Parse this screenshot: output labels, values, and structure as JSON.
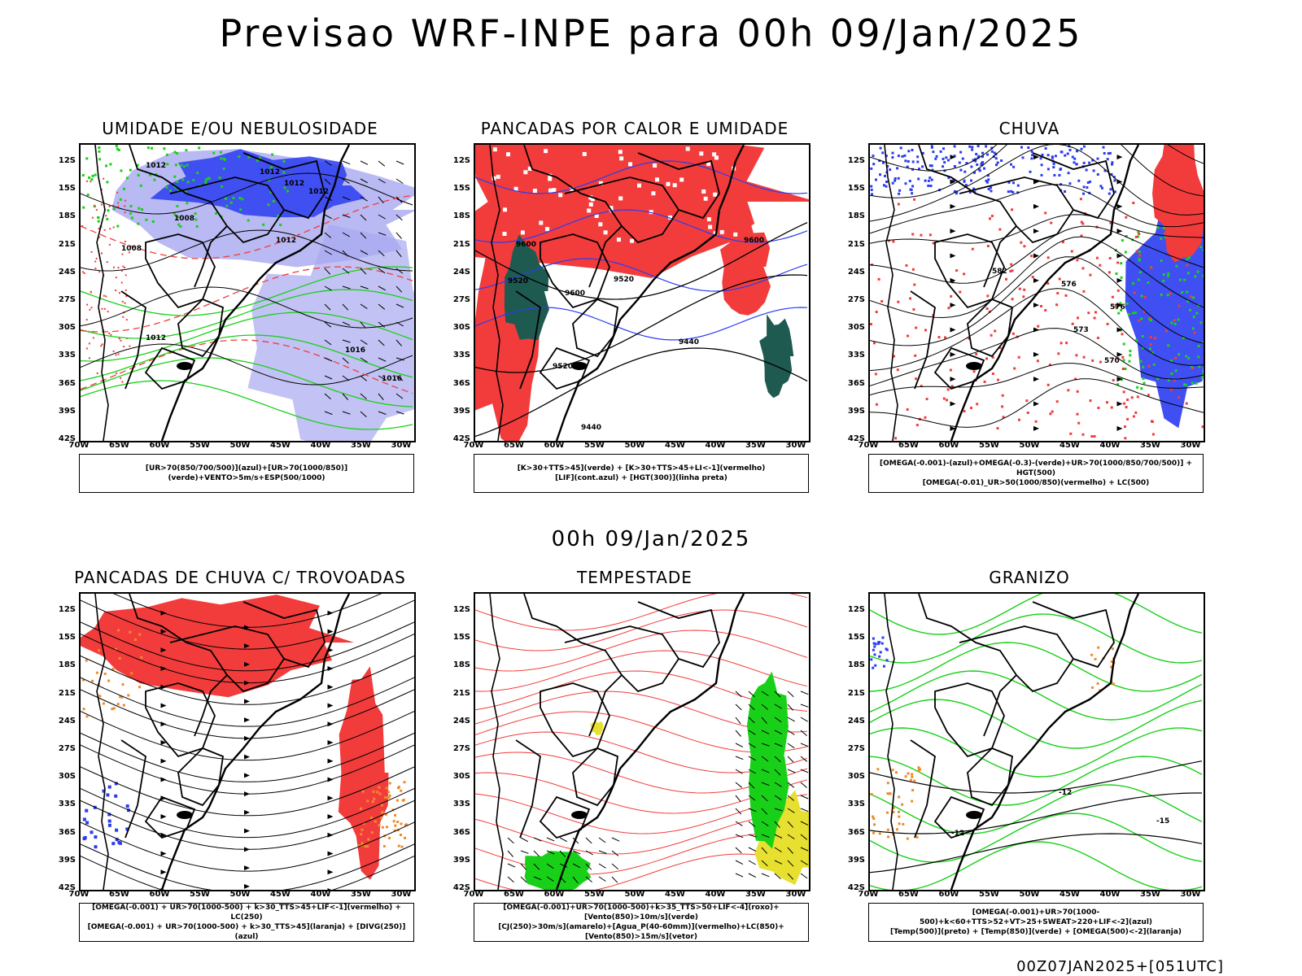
{
  "title": "Previsao WRF-INPE  para 00h 09/Jan/2025",
  "subtitle": "00h 09/Jan/2025",
  "footer": "00Z07JAN2025+[051UTC]",
  "axes": {
    "lat_ticks": [
      "12S",
      "15S",
      "18S",
      "21S",
      "24S",
      "27S",
      "30S",
      "33S",
      "36S",
      "39S",
      "42S"
    ],
    "lon_ticks": [
      "70W",
      "65W",
      "60W",
      "55W",
      "50W",
      "45W",
      "40W",
      "35W",
      "30W"
    ]
  },
  "colors": {
    "red": "#f23c3c",
    "blue": "#2a3cf0",
    "green": "#19d019",
    "lavender": "#a8a8f0",
    "orange": "#f08a28",
    "yellow": "#e8e030",
    "darkgreen": "#1f5a50"
  },
  "panels": [
    {
      "title": "UMIDADE E/OU NEBULOSIDADE",
      "legend": [
        "[UR>70(850/700/500)](azul)+[UR>70(1000/850)](verde)+VENTO>5m/s+ESP(500/1000)"
      ],
      "contour_labels": [
        "1012",
        "1012",
        "1012",
        "1008",
        "1016",
        "1012",
        "1012",
        "1016",
        "1008",
        "1012"
      ]
    },
    {
      "title": "PANCADAS POR CALOR E UMIDADE",
      "legend": [
        "[K>30+TTS>45](verde) + [K>30+TTS>45+LI<-1](vermelho)",
        "[LIF](cont.azul) + [HGT(300)](linha preta)"
      ],
      "contour_labels": [
        "9600",
        "9600",
        "9520",
        "9600",
        "9520",
        "9440",
        "9520",
        "9440"
      ]
    },
    {
      "title": "CHUVA",
      "legend": [
        "[OMEGA(-0.001)-(azul)+OMEGA(-0.3)-(verde)+UR>70(1000/850/700/500)] + HGT(500)",
        "[OMEGA(-0.01)_UR>50(1000/850)(vermelho) + LC(500)"
      ],
      "contour_labels": [
        "582",
        "576",
        "573",
        "570",
        "576"
      ]
    },
    {
      "title": "PANCADAS DE CHUVA C/ TROVOADAS",
      "legend": [
        "[OMEGA(-0.001) + UR>70(1000-500) + k>30_TTS>45+LIF<-1](vermelho) + LC(250)",
        "[OMEGA(-0.001) + UR>70(1000-500) + k>30_TTS>45](laranja) + [DIVG(250)](azul)"
      ],
      "contour_labels": []
    },
    {
      "title": "TEMPESTADE",
      "legend": [
        "[OMEGA(-0.001)+UR>70(1000-500)+k>35_TTS>50+LIF<-4](roxo)+[Vento(850)>10m/s](verde)",
        "[CJ(250)>30m/s](amarelo)+[Agua_P(40-60mm)](vermelho)+LC(850)+[Vento(850)>15m/s](vetor)"
      ],
      "contour_labels": []
    },
    {
      "title": "GRANIZO",
      "legend": [
        "[OMEGA(-0.001)+UR>70(1000-500)+k<60+TTS>52+VT>25+SWEAT>220+LIF<-2](azul)",
        "[Temp(500)](preto) + [Temp(850)](verde) + [OMEGA(500)<-2](laranja)"
      ],
      "contour_labels": [
        "-12",
        "-12",
        "-15"
      ]
    }
  ]
}
